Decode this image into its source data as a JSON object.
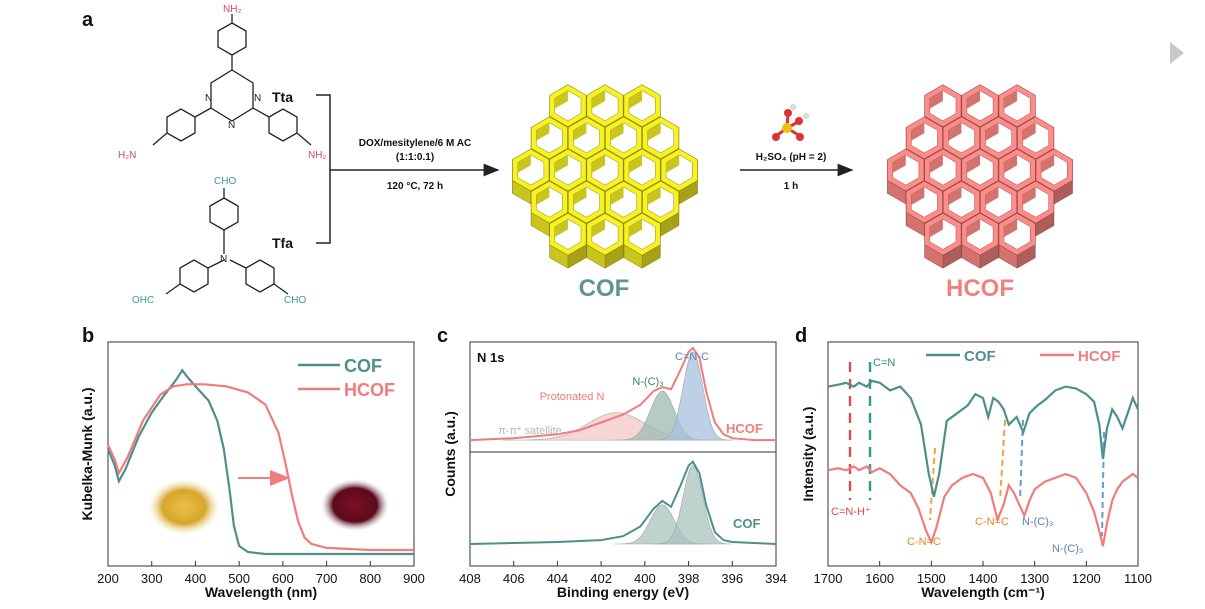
{
  "panel_a": {
    "letter": "a",
    "tta_label": "Tta",
    "tfa_label": "Tfa",
    "nh2": "NH₂",
    "h2n": "H₂N",
    "cho": "CHO",
    "ohc": "OHC",
    "n": "N",
    "cond1_line1": "DOX/mesitylene/6 M AC",
    "cond1_line2": "(1:1:0.1)",
    "cond1_line3": "120 °C, 72 h",
    "cond2_line1": "H₂SO₄ (pH = 2)",
    "cond2_line2": "1 h",
    "cof_label": "COF",
    "hcof_label": "HCOF",
    "proton_label": "H⁺",
    "colors": {
      "cof": "#e6e020",
      "hcof": "#f0827e",
      "amine": "#d2486b",
      "aldehyde": "#3a9a94"
    }
  },
  "nav_arrow_icon": "play-arrow-icon",
  "chart_data": [
    {
      "panel": "b",
      "type": "line",
      "xlabel": "Wavelength (nm)",
      "ylabel": "Kubelka-Munk (a.u.)",
      "xlim": [
        200,
        900
      ],
      "xticks": [
        200,
        300,
        400,
        500,
        600,
        700,
        800,
        900
      ],
      "legend_position": "top-right",
      "series": [
        {
          "name": "COF",
          "color": "#4f8f8b",
          "x": [
            200,
            215,
            225,
            240,
            270,
            300,
            330,
            355,
            370,
            380,
            400,
            430,
            450,
            465,
            478,
            488,
            500,
            520,
            560,
            620,
            700,
            800,
            900
          ],
          "y": [
            0.52,
            0.44,
            0.36,
            0.42,
            0.58,
            0.7,
            0.79,
            0.86,
            0.91,
            0.88,
            0.83,
            0.76,
            0.66,
            0.52,
            0.32,
            0.14,
            0.04,
            0.01,
            0.0,
            0.0,
            0.0,
            0.0,
            0.0
          ]
        },
        {
          "name": "HCOF",
          "color": "#f07c7c",
          "x": [
            200,
            215,
            225,
            245,
            280,
            320,
            350,
            380,
            420,
            470,
            520,
            560,
            590,
            605,
            620,
            635,
            650,
            665,
            700,
            800,
            900
          ],
          "y": [
            0.54,
            0.47,
            0.4,
            0.48,
            0.66,
            0.79,
            0.83,
            0.84,
            0.84,
            0.83,
            0.8,
            0.74,
            0.6,
            0.46,
            0.3,
            0.16,
            0.08,
            0.05,
            0.03,
            0.02,
            0.02
          ]
        }
      ]
    },
    {
      "panel": "c",
      "type": "line",
      "xlabel": "Binding energy (eV)",
      "ylabel": "Counts (a.u.)",
      "xlim": [
        408,
        394
      ],
      "xticks": [
        408,
        406,
        404,
        402,
        400,
        398,
        396,
        394
      ],
      "title": "N 1s",
      "annotations": [
        "C=N-C",
        "N-(C)₃",
        "Protonated N",
        "π-π* satellite"
      ],
      "series": [
        {
          "name": "HCOF",
          "color": "#f07c7c",
          "x": [
            408,
            406,
            404,
            403,
            402,
            401,
            400.2,
            399.6,
            399.2,
            398.8,
            398.4,
            398.0,
            397.8,
            397.5,
            397.2,
            396.8,
            396.4,
            396,
            395,
            394
          ],
          "y": [
            0.53,
            0.54,
            0.56,
            0.58,
            0.62,
            0.66,
            0.71,
            0.78,
            0.8,
            0.79,
            0.88,
            0.98,
            1.0,
            0.95,
            0.78,
            0.62,
            0.56,
            0.54,
            0.53,
            0.53
          ]
        },
        {
          "name": "COF",
          "color": "#4f8f8b",
          "x": [
            408,
            406,
            404,
            402,
            401,
            400.2,
            399.6,
            399.2,
            398.8,
            398.4,
            398.0,
            397.8,
            397.5,
            397.2,
            396.8,
            396.4,
            396,
            395,
            394
          ],
          "y": [
            0.0,
            0.005,
            0.01,
            0.02,
            0.04,
            0.09,
            0.18,
            0.22,
            0.19,
            0.29,
            0.4,
            0.42,
            0.36,
            0.2,
            0.06,
            0.02,
            0.01,
            0.005,
            0.0
          ]
        }
      ]
    },
    {
      "panel": "d",
      "type": "line",
      "xlabel": "Wavelength (cm⁻¹)",
      "ylabel": "Intensity (a.u.)",
      "xlim": [
        1700,
        1100
      ],
      "xticks": [
        1700,
        1600,
        1500,
        1400,
        1300,
        1200,
        1100
      ],
      "legend_position": "top",
      "annotations": [
        "C=N",
        "C=N-H⁺",
        "C-N=C",
        "C-N=C",
        "N-(C)₃",
        "N-(C)₃"
      ],
      "series": [
        {
          "name": "COF",
          "color": "#4f8f8b",
          "x": [
            1700,
            1680,
            1665,
            1650,
            1640,
            1625,
            1615,
            1600,
            1580,
            1560,
            1540,
            1520,
            1505,
            1495,
            1485,
            1470,
            1450,
            1430,
            1415,
            1400,
            1390,
            1380,
            1370,
            1360,
            1350,
            1335,
            1322,
            1310,
            1295,
            1280,
            1260,
            1240,
            1220,
            1200,
            1185,
            1175,
            1168,
            1160,
            1150,
            1140,
            1130,
            1120,
            1110,
            1100
          ],
          "y": [
            0.86,
            0.87,
            0.88,
            0.86,
            0.88,
            0.86,
            0.89,
            0.88,
            0.84,
            0.86,
            0.8,
            0.66,
            0.4,
            0.28,
            0.4,
            0.68,
            0.72,
            0.76,
            0.82,
            0.8,
            0.7,
            0.8,
            0.78,
            0.74,
            0.66,
            0.7,
            0.62,
            0.72,
            0.76,
            0.79,
            0.84,
            0.86,
            0.85,
            0.82,
            0.78,
            0.66,
            0.48,
            0.64,
            0.74,
            0.7,
            0.64,
            0.72,
            0.8,
            0.74
          ]
        },
        {
          "name": "HCOF",
          "color": "#f07c7c",
          "x": [
            1700,
            1680,
            1665,
            1650,
            1640,
            1625,
            1615,
            1600,
            1580,
            1560,
            1540,
            1525,
            1510,
            1500,
            1490,
            1475,
            1460,
            1440,
            1420,
            1400,
            1385,
            1372,
            1360,
            1350,
            1340,
            1330,
            1320,
            1310,
            1300,
            1280,
            1260,
            1240,
            1220,
            1200,
            1185,
            1175,
            1168,
            1160,
            1150,
            1140,
            1130,
            1120,
            1110,
            1100
          ],
          "y": [
            0.42,
            0.43,
            0.42,
            0.44,
            0.42,
            0.44,
            0.41,
            0.43,
            0.4,
            0.34,
            0.3,
            0.22,
            0.1,
            0.04,
            0.12,
            0.28,
            0.34,
            0.38,
            0.4,
            0.38,
            0.3,
            0.16,
            0.24,
            0.34,
            0.3,
            0.24,
            0.18,
            0.26,
            0.32,
            0.36,
            0.38,
            0.4,
            0.38,
            0.3,
            0.2,
            0.1,
            0.02,
            0.14,
            0.26,
            0.32,
            0.36,
            0.38,
            0.4,
            0.38
          ]
        }
      ]
    }
  ],
  "panel_letters": {
    "b": "b",
    "c": "c",
    "d": "d"
  }
}
